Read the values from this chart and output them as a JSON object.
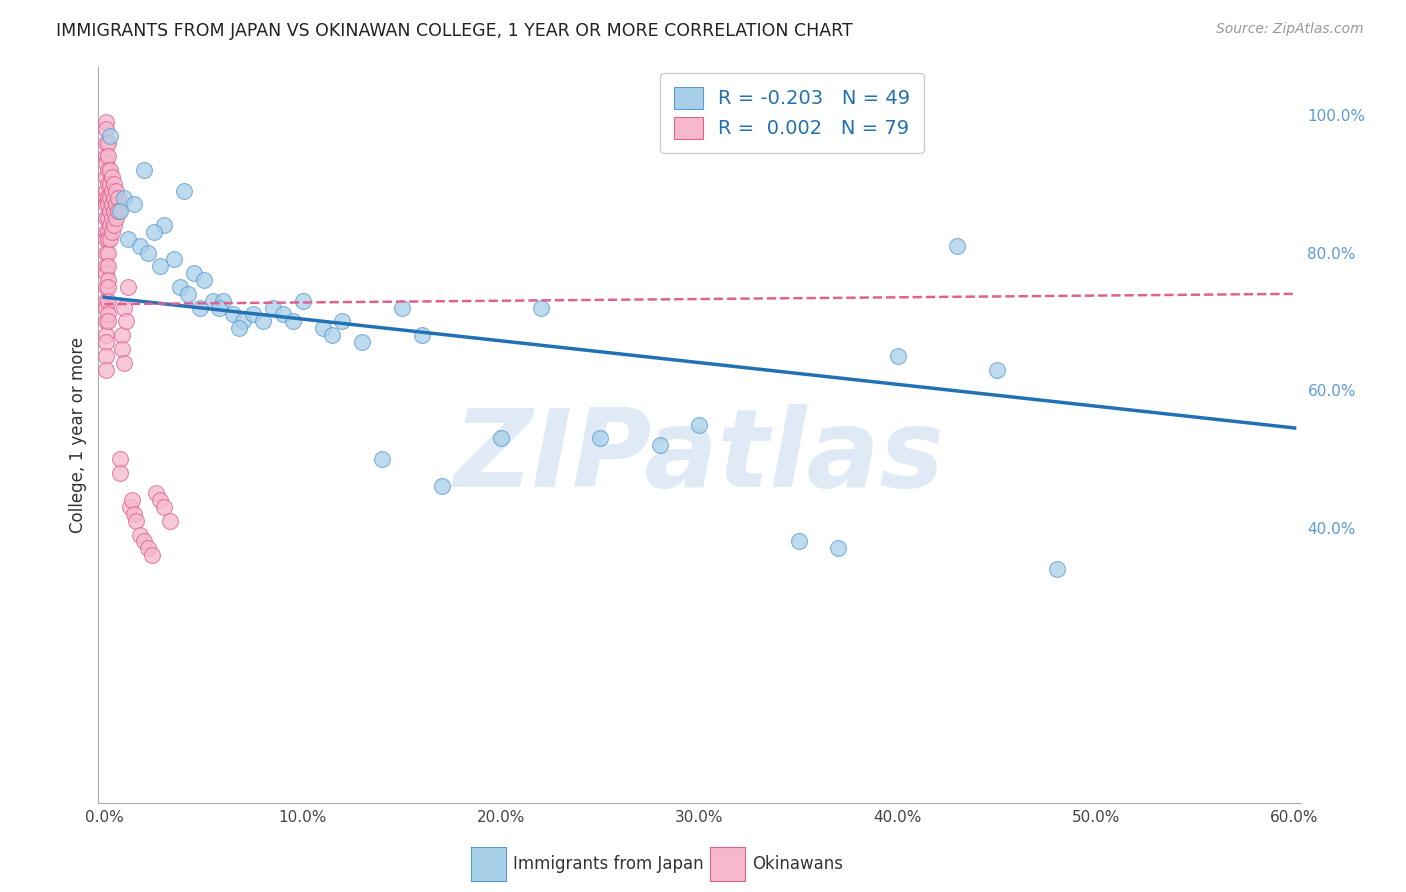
{
  "title": "IMMIGRANTS FROM JAPAN VS OKINAWAN COLLEGE, 1 YEAR OR MORE CORRELATION CHART",
  "source": "Source: ZipAtlas.com",
  "ylabel": "College, 1 year or more",
  "legend_label_blue": "Immigrants from Japan",
  "legend_label_pink": "Okinawans",
  "R_blue": -0.203,
  "N_blue": 49,
  "R_pink": 0.002,
  "N_pink": 79,
  "xlim": [
    -0.003,
    0.603
  ],
  "ylim": [
    0.0,
    1.07
  ],
  "xticks": [
    0.0,
    0.1,
    0.2,
    0.3,
    0.4,
    0.5,
    0.6
  ],
  "xtick_labels": [
    "0.0%",
    "10.0%",
    "20.0%",
    "30.0%",
    "40.0%",
    "50.0%",
    "60.0%"
  ],
  "yticks_right": [
    0.4,
    0.6,
    0.8,
    1.0
  ],
  "ytick_labels_right": [
    "40.0%",
    "60.0%",
    "80.0%",
    "100.0%"
  ],
  "color_blue": "#a8cfe8",
  "color_pink": "#f5b8cc",
  "edge_blue": "#5b9bd5",
  "edge_pink": "#e06090",
  "trendline_blue": "#2171b5",
  "trendline_pink": "#e06090",
  "background_color": "#ffffff",
  "watermark_color": "#c5d9ef",
  "blue_trend_x0": 0.0,
  "blue_trend_y0": 0.735,
  "blue_trend_x1": 0.6,
  "blue_trend_y1": 0.545,
  "pink_trend_x0": 0.0,
  "pink_trend_y0": 0.725,
  "pink_trend_x1": 0.6,
  "pink_trend_y1": 0.74,
  "blue_x": [
    0.003,
    0.02,
    0.04,
    0.01,
    0.015,
    0.008,
    0.03,
    0.025,
    0.012,
    0.018,
    0.022,
    0.035,
    0.028,
    0.045,
    0.05,
    0.038,
    0.042,
    0.055,
    0.06,
    0.048,
    0.065,
    0.07,
    0.058,
    0.075,
    0.08,
    0.068,
    0.085,
    0.09,
    0.095,
    0.1,
    0.11,
    0.12,
    0.115,
    0.13,
    0.14,
    0.15,
    0.16,
    0.17,
    0.2,
    0.22,
    0.25,
    0.28,
    0.3,
    0.35,
    0.37,
    0.4,
    0.43,
    0.45,
    0.48
  ],
  "blue_y": [
    0.97,
    0.92,
    0.89,
    0.88,
    0.87,
    0.86,
    0.84,
    0.83,
    0.82,
    0.81,
    0.8,
    0.79,
    0.78,
    0.77,
    0.76,
    0.75,
    0.74,
    0.73,
    0.73,
    0.72,
    0.71,
    0.7,
    0.72,
    0.71,
    0.7,
    0.69,
    0.72,
    0.71,
    0.7,
    0.73,
    0.69,
    0.7,
    0.68,
    0.67,
    0.5,
    0.72,
    0.68,
    0.46,
    0.53,
    0.72,
    0.53,
    0.52,
    0.55,
    0.38,
    0.37,
    0.65,
    0.81,
    0.63,
    0.34
  ],
  "pink_x": [
    0.001,
    0.001,
    0.001,
    0.001,
    0.001,
    0.001,
    0.001,
    0.001,
    0.001,
    0.001,
    0.001,
    0.001,
    0.001,
    0.001,
    0.001,
    0.001,
    0.001,
    0.001,
    0.001,
    0.001,
    0.001,
    0.001,
    0.001,
    0.002,
    0.002,
    0.002,
    0.002,
    0.002,
    0.002,
    0.002,
    0.002,
    0.002,
    0.002,
    0.002,
    0.002,
    0.002,
    0.002,
    0.002,
    0.002,
    0.003,
    0.003,
    0.003,
    0.003,
    0.003,
    0.003,
    0.004,
    0.004,
    0.004,
    0.004,
    0.004,
    0.005,
    0.005,
    0.005,
    0.005,
    0.006,
    0.006,
    0.006,
    0.007,
    0.007,
    0.008,
    0.008,
    0.009,
    0.009,
    0.01,
    0.01,
    0.011,
    0.012,
    0.013,
    0.014,
    0.015,
    0.016,
    0.018,
    0.02,
    0.022,
    0.024,
    0.026,
    0.028,
    0.03,
    0.033
  ],
  "pink_y": [
    0.99,
    0.98,
    0.96,
    0.94,
    0.93,
    0.91,
    0.89,
    0.88,
    0.87,
    0.85,
    0.83,
    0.82,
    0.8,
    0.78,
    0.77,
    0.75,
    0.73,
    0.72,
    0.7,
    0.68,
    0.67,
    0.65,
    0.63,
    0.96,
    0.94,
    0.92,
    0.9,
    0.88,
    0.87,
    0.85,
    0.83,
    0.82,
    0.8,
    0.78,
    0.76,
    0.75,
    0.73,
    0.71,
    0.7,
    0.92,
    0.9,
    0.88,
    0.86,
    0.84,
    0.82,
    0.91,
    0.89,
    0.87,
    0.85,
    0.83,
    0.9,
    0.88,
    0.86,
    0.84,
    0.89,
    0.87,
    0.85,
    0.88,
    0.86,
    0.5,
    0.48,
    0.68,
    0.66,
    0.64,
    0.72,
    0.7,
    0.75,
    0.43,
    0.44,
    0.42,
    0.41,
    0.39,
    0.38,
    0.37,
    0.36,
    0.45,
    0.44,
    0.43,
    0.41
  ]
}
